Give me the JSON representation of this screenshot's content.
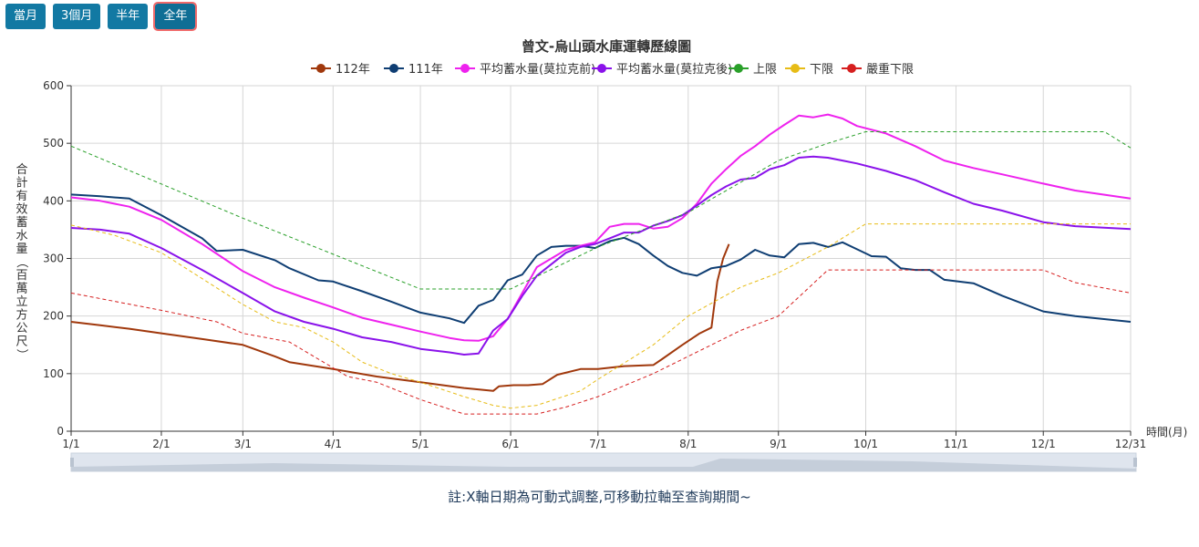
{
  "buttons": [
    {
      "label": "當月",
      "active": false
    },
    {
      "label": "3個月",
      "active": false
    },
    {
      "label": "半年",
      "active": false
    },
    {
      "label": "全年",
      "active": true
    }
  ],
  "note": "註:X軸日期為可動式調整,可移動拉軸至查詢期間~",
  "chart_data": {
    "type": "line",
    "title": "曾文-烏山頭水庫運轉歷線圖",
    "ylabel": "合計有效蓄水量（百萬立方公尺）",
    "xlabel": "時間(月)",
    "ylim": [
      0,
      600
    ],
    "yticks": [
      0,
      100,
      200,
      300,
      400,
      500,
      600
    ],
    "xlim": [
      0,
      364
    ],
    "xticks": [
      {
        "label": "1/1",
        "day": 0
      },
      {
        "label": "2/1",
        "day": 31
      },
      {
        "label": "3/1",
        "day": 59
      },
      {
        "label": "4/1",
        "day": 90
      },
      {
        "label": "5/1",
        "day": 120
      },
      {
        "label": "6/1",
        "day": 151
      },
      {
        "label": "7/1",
        "day": 181
      },
      {
        "label": "8/1",
        "day": 212
      },
      {
        "label": "9/1",
        "day": 243
      },
      {
        "label": "10/1",
        "day": 273
      },
      {
        "label": "11/1",
        "day": 304
      },
      {
        "label": "12/1",
        "day": 334
      },
      {
        "label": "12/31",
        "day": 364
      }
    ],
    "grid": true,
    "legend_position": "top",
    "series": [
      {
        "name": "112年",
        "color": "#a0380c",
        "style": "solid",
        "x": [
          0,
          10,
          20,
          31,
          45,
          59,
          70,
          75,
          90,
          105,
          120,
          135,
          145,
          147,
          152,
          157,
          162,
          167,
          175,
          181,
          190,
          200,
          203,
          210,
          216,
          220,
          222,
          224,
          226
        ],
        "y": [
          190,
          184,
          178,
          170,
          160,
          150,
          130,
          120,
          108,
          95,
          85,
          75,
          70,
          78,
          80,
          80,
          82,
          98,
          108,
          108,
          113,
          115,
          125,
          150,
          170,
          180,
          260,
          300,
          325
        ]
      },
      {
        "name": "111年",
        "color": "#0f3e73",
        "style": "solid",
        "x": [
          0,
          10,
          20,
          31,
          45,
          50,
          59,
          70,
          75,
          85,
          90,
          100,
          110,
          120,
          130,
          135,
          140,
          145,
          150,
          155,
          160,
          165,
          170,
          175,
          180,
          185,
          190,
          195,
          200,
          205,
          210,
          215,
          220,
          225,
          230,
          235,
          240,
          245,
          250,
          255,
          260,
          265,
          270,
          275,
          280,
          285,
          290,
          295,
          300,
          310,
          320,
          334,
          345,
          364
        ],
        "y": [
          411,
          408,
          404,
          375,
          335,
          313,
          315,
          297,
          283,
          262,
          260,
          243,
          225,
          206,
          196,
          188,
          218,
          228,
          262,
          272,
          305,
          320,
          322,
          322,
          318,
          330,
          336,
          325,
          305,
          287,
          275,
          270,
          283,
          287,
          298,
          315,
          305,
          302,
          325,
          327,
          320,
          328,
          316,
          304,
          303,
          283,
          280,
          280,
          263,
          257,
          235,
          208,
          200,
          190
        ]
      },
      {
        "name": "平均蓄水量(莫拉克前)",
        "color": "#ee22ee",
        "style": "solid",
        "x": [
          0,
          10,
          20,
          31,
          45,
          59,
          70,
          80,
          90,
          100,
          110,
          120,
          130,
          135,
          140,
          145,
          150,
          155,
          160,
          165,
          170,
          175,
          180,
          185,
          190,
          195,
          200,
          205,
          210,
          215,
          220,
          225,
          230,
          235,
          240,
          245,
          250,
          255,
          260,
          265,
          270,
          280,
          290,
          300,
          310,
          320,
          334,
          345,
          364
        ],
        "y": [
          406,
          400,
          390,
          367,
          325,
          278,
          250,
          232,
          215,
          197,
          185,
          173,
          162,
          158,
          157,
          165,
          195,
          240,
          285,
          300,
          315,
          322,
          328,
          355,
          360,
          360,
          352,
          355,
          370,
          395,
          430,
          455,
          478,
          495,
          515,
          532,
          548,
          545,
          550,
          543,
          530,
          517,
          495,
          470,
          457,
          446,
          430,
          418,
          404
        ]
      },
      {
        "name": "平均蓄水量(莫拉克後)",
        "color": "#8a12ea",
        "style": "solid",
        "x": [
          0,
          10,
          20,
          31,
          45,
          59,
          70,
          80,
          90,
          100,
          110,
          120,
          130,
          135,
          140,
          145,
          150,
          155,
          160,
          165,
          170,
          175,
          180,
          185,
          190,
          195,
          200,
          205,
          210,
          215,
          220,
          225,
          230,
          235,
          240,
          245,
          250,
          255,
          260,
          265,
          270,
          280,
          290,
          300,
          310,
          320,
          334,
          345,
          364
        ],
        "y": [
          353,
          350,
          343,
          318,
          280,
          240,
          208,
          190,
          178,
          163,
          155,
          143,
          137,
          133,
          135,
          175,
          195,
          235,
          270,
          290,
          310,
          320,
          325,
          335,
          345,
          345,
          357,
          365,
          375,
          392,
          410,
          425,
          437,
          440,
          455,
          462,
          475,
          477,
          475,
          470,
          465,
          452,
          436,
          415,
          395,
          383,
          363,
          356,
          351
        ]
      },
      {
        "name": "上限",
        "color": "#2aa02a",
        "style": "dashed",
        "x": [
          0,
          59,
          120,
          151,
          181,
          212,
          243,
          260,
          273,
          300,
          334,
          355,
          364
        ],
        "y": [
          495,
          370,
          247,
          247,
          320,
          380,
          470,
          500,
          520,
          520,
          520,
          520,
          492
        ]
      },
      {
        "name": "下限",
        "color": "#e7bc16",
        "style": "dashed",
        "x": [
          0,
          15,
          31,
          45,
          59,
          70,
          80,
          90,
          100,
          110,
          120,
          135,
          145,
          151,
          160,
          175,
          181,
          200,
          212,
          230,
          243,
          260,
          273,
          300,
          334,
          364
        ],
        "y": [
          358,
          340,
          310,
          265,
          220,
          190,
          180,
          155,
          120,
          100,
          85,
          60,
          45,
          40,
          45,
          70,
          90,
          150,
          200,
          250,
          275,
          320,
          360,
          360,
          360,
          360
        ]
      },
      {
        "name": "嚴重下限",
        "color": "#d61f1f",
        "style": "dashed",
        "x": [
          0,
          31,
          50,
          59,
          75,
          85,
          95,
          105,
          120,
          135,
          151,
          160,
          170,
          181,
          200,
          212,
          230,
          243,
          260,
          273,
          300,
          334,
          345,
          364
        ],
        "y": [
          240,
          210,
          190,
          170,
          155,
          125,
          95,
          85,
          55,
          30,
          30,
          30,
          42,
          60,
          100,
          130,
          175,
          200,
          280,
          280,
          280,
          280,
          258,
          240
        ]
      }
    ]
  }
}
